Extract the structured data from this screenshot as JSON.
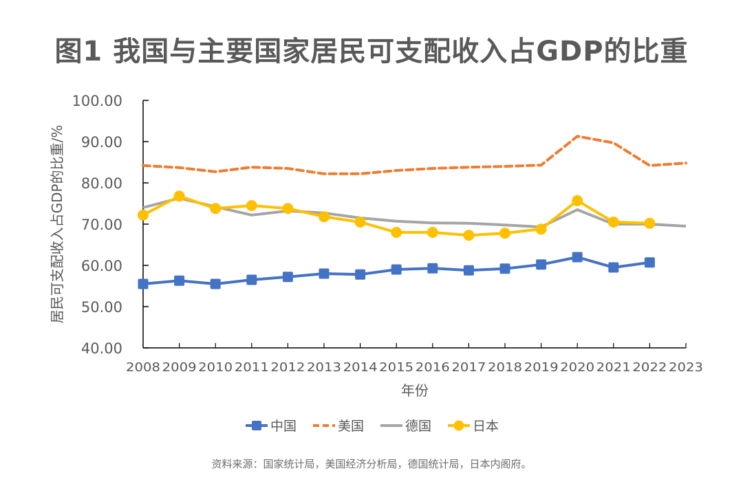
{
  "chart_data": {
    "type": "line",
    "title": "图1  我国与主要国家居民可支配收入占GDP的比重",
    "xlabel": "年份",
    "ylabel": "居民可支配收入占GDP的比重/%",
    "ylim": [
      40,
      100
    ],
    "yticks": [
      "40.00",
      "50.00",
      "60.00",
      "70.00",
      "80.00",
      "90.00",
      "100.00"
    ],
    "ytick_values": [
      40,
      50,
      60,
      70,
      80,
      90,
      100
    ],
    "categories": [
      "2008",
      "2009",
      "2010",
      "2011",
      "2012",
      "2013",
      "2014",
      "2015",
      "2016",
      "2017",
      "2018",
      "2019",
      "2020",
      "2021",
      "2022",
      "2023"
    ],
    "grid": false,
    "legend_position": "bottom",
    "series": [
      {
        "name": "中国",
        "color": "#4472C4",
        "style": "solid",
        "marker": "square",
        "values": [
          55.5,
          56.3,
          55.5,
          56.5,
          57.2,
          58.0,
          57.8,
          59.0,
          59.3,
          58.8,
          59.2,
          60.2,
          62.0,
          59.5,
          60.7,
          null
        ]
      },
      {
        "name": "美国",
        "color": "#ED7D31",
        "style": "dashed",
        "marker": "none",
        "values": [
          84.2,
          83.7,
          82.7,
          83.8,
          83.5,
          82.2,
          82.2,
          83.0,
          83.5,
          83.8,
          84.0,
          84.3,
          91.3,
          89.7,
          84.2,
          84.8
        ]
      },
      {
        "name": "德国",
        "color": "#A5A5A5",
        "style": "solid",
        "marker": "none",
        "values": [
          74.0,
          76.3,
          74.2,
          72.2,
          73.2,
          72.7,
          71.5,
          70.7,
          70.3,
          70.2,
          69.8,
          69.3,
          73.5,
          70.0,
          70.0,
          69.5
        ]
      },
      {
        "name": "日本",
        "color": "#FFC000",
        "style": "solid",
        "marker": "circle",
        "values": [
          72.2,
          76.8,
          73.8,
          74.5,
          73.8,
          71.8,
          70.5,
          68.0,
          68.0,
          67.3,
          67.8,
          68.8,
          75.7,
          70.5,
          70.2,
          null
        ]
      }
    ]
  },
  "source": "资料来源：国家统计局，美国经济分析局，德国统计局，日本内阁府。"
}
